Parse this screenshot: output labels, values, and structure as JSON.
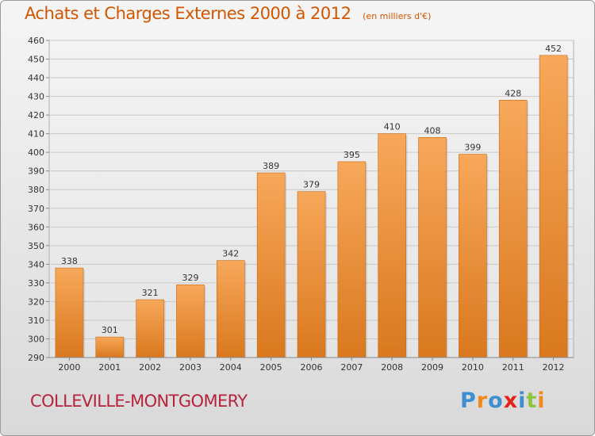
{
  "title": "Achats et Charges Externes 2000 à 2012",
  "unit_note": "(en milliers d'€)",
  "commune": "COLLEVILLE-MONTGOMERY",
  "logo": {
    "text": "Proxiti",
    "letters": [
      {
        "ch": "P",
        "color": "#3d8fd1"
      },
      {
        "ch": "r",
        "color": "#f08a1c"
      },
      {
        "ch": "o",
        "color": "#3d8fd1"
      },
      {
        "ch": "x",
        "color": "#e2231a"
      },
      {
        "ch": "i",
        "color": "#3d8fd1"
      },
      {
        "ch": "t",
        "color": "#8cc63f"
      },
      {
        "ch": "i",
        "color": "#f08a1c"
      }
    ]
  },
  "colors": {
    "title": "#d45500",
    "commune": "#b5243c",
    "bar_top": "#f7a85a",
    "bar_bottom": "#d9781e"
  },
  "chart_data": {
    "type": "bar",
    "title": "Achats et Charges Externes 2000 à 2012",
    "categories": [
      "2000",
      "2001",
      "2002",
      "2003",
      "2004",
      "2005",
      "2006",
      "2007",
      "2008",
      "2009",
      "2010",
      "2011",
      "2012"
    ],
    "values": [
      338,
      301,
      321,
      329,
      342,
      389,
      379,
      395,
      410,
      408,
      399,
      428,
      452
    ],
    "ylim": [
      290,
      460
    ],
    "yticks": [
      290,
      300,
      310,
      320,
      330,
      340,
      350,
      360,
      370,
      380,
      390,
      400,
      410,
      420,
      430,
      440,
      450,
      460
    ],
    "grid": true,
    "xlabel": "",
    "ylabel": ""
  }
}
